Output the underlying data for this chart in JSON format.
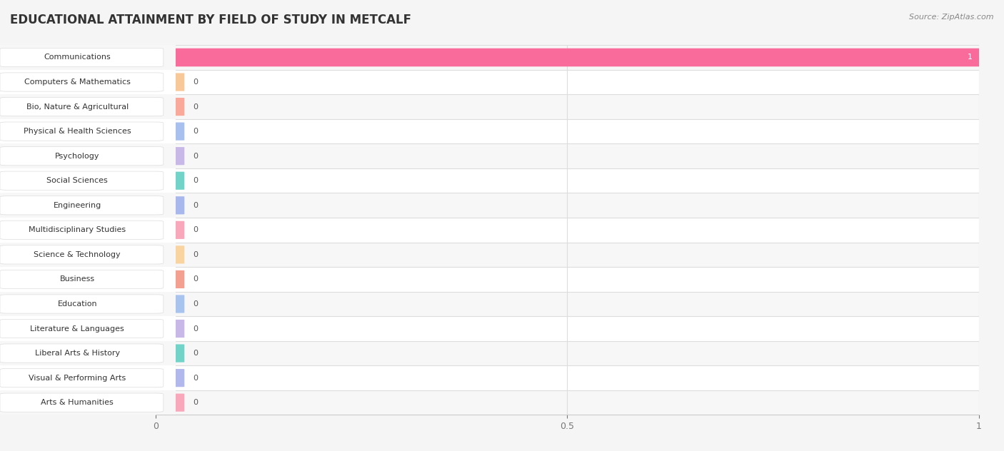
{
  "title": "EDUCATIONAL ATTAINMENT BY FIELD OF STUDY IN METCALF",
  "source": "Source: ZipAtlas.com",
  "categories": [
    "Communications",
    "Computers & Mathematics",
    "Bio, Nature & Agricultural",
    "Physical & Health Sciences",
    "Psychology",
    "Social Sciences",
    "Engineering",
    "Multidisciplinary Studies",
    "Science & Technology",
    "Business",
    "Education",
    "Literature & Languages",
    "Liberal Arts & History",
    "Visual & Performing Arts",
    "Arts & Humanities"
  ],
  "values": [
    1,
    0,
    0,
    0,
    0,
    0,
    0,
    0,
    0,
    0,
    0,
    0,
    0,
    0,
    0
  ],
  "bar_colors": [
    "#F96B9B",
    "#F9C899",
    "#F9A89A",
    "#A8C0EE",
    "#C8B8E8",
    "#72D4C8",
    "#A8B8EC",
    "#F9A8BC",
    "#F9D4A0",
    "#F4A090",
    "#A8C4EE",
    "#C8B8E8",
    "#72D4C8",
    "#B0B8EC",
    "#F9A8BC"
  ],
  "row_bg_even": "#f7f7f7",
  "row_bg_odd": "#ffffff",
  "grid_color": "#dddddd",
  "spine_color": "#cccccc",
  "xlim": [
    0,
    1
  ],
  "xticks": [
    0,
    0.5,
    1
  ],
  "background_color": "#f5f5f5",
  "title_fontsize": 12,
  "label_fontsize": 8,
  "value_fontsize": 8
}
